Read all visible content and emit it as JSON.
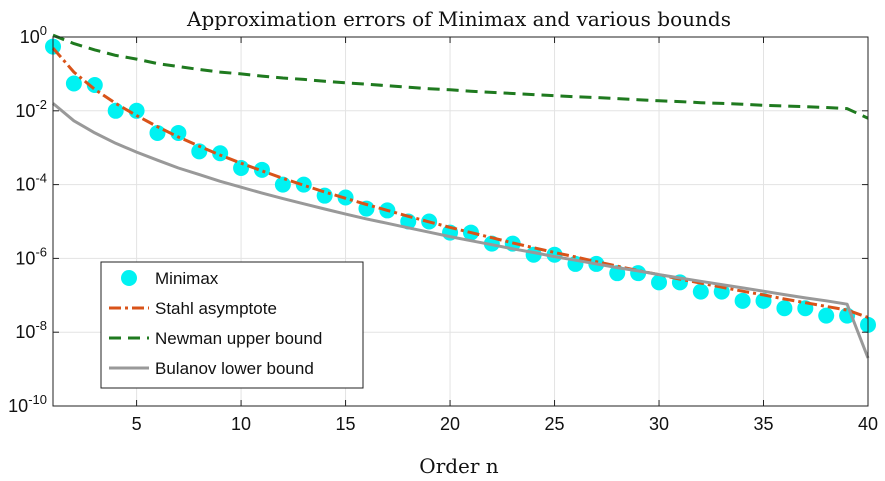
{
  "chart_data": {
    "type": "line",
    "title": "Approximation errors of Minimax and various bounds",
    "xlabel": "Order n",
    "ylabel": "",
    "xlim": [
      1,
      40
    ],
    "ylim_log10": [
      -10,
      0
    ],
    "yscale": "log",
    "grid": true,
    "legend_position": "bottom-left",
    "xticks": [
      5,
      10,
      15,
      20,
      25,
      30,
      35,
      40
    ],
    "xtick_labels": [
      "5",
      "10",
      "15",
      "20",
      "25",
      "30",
      "35",
      "40"
    ],
    "ytick_exponents": [
      -10,
      -8,
      -6,
      -4,
      -2,
      0
    ],
    "ytick_base": "10",
    "series": [
      {
        "name": "Minimax",
        "style": "markers",
        "color": "#00f2f2",
        "x": [
          1,
          2,
          3,
          4,
          5,
          6,
          7,
          8,
          9,
          10,
          11,
          12,
          13,
          14,
          15,
          16,
          17,
          18,
          19,
          20,
          21,
          22,
          23,
          24,
          25,
          26,
          27,
          28,
          29,
          30,
          31,
          32,
          33,
          34,
          35,
          36,
          37,
          38,
          39,
          40
        ],
        "log10_y": [
          -0.26,
          -1.26,
          -1.3,
          -2.0,
          -2.0,
          -2.6,
          -2.6,
          -3.1,
          -3.15,
          -3.55,
          -3.6,
          -4.0,
          -4.0,
          -4.3,
          -4.35,
          -4.65,
          -4.7,
          -5.0,
          -5.0,
          -5.3,
          -5.3,
          -5.6,
          -5.6,
          -5.9,
          -5.9,
          -6.15,
          -6.15,
          -6.4,
          -6.4,
          -6.65,
          -6.65,
          -6.9,
          -6.9,
          -7.15,
          -7.15,
          -7.35,
          -7.35,
          -7.55,
          -7.55,
          -7.8
        ]
      },
      {
        "name": "Stahl asymptote",
        "style": "dash-dot",
        "color": "#d95319",
        "x": [
          1,
          2,
          3,
          4,
          5,
          6,
          7,
          8,
          9,
          10,
          11,
          12,
          13,
          14,
          15,
          16,
          17,
          18,
          19,
          20,
          21,
          22,
          23,
          24,
          25,
          26,
          27,
          28,
          29,
          30,
          31,
          32,
          33,
          34,
          35,
          36,
          37,
          38,
          39,
          40
        ],
        "log10_y": [
          -0.3,
          -0.95,
          -1.42,
          -1.8,
          -2.13,
          -2.43,
          -2.71,
          -2.96,
          -3.2,
          -3.42,
          -3.63,
          -3.83,
          -4.02,
          -4.2,
          -4.37,
          -4.54,
          -4.7,
          -4.86,
          -5.01,
          -5.16,
          -5.3,
          -5.44,
          -5.58,
          -5.71,
          -5.84,
          -5.96,
          -6.09,
          -6.21,
          -6.33,
          -6.44,
          -6.56,
          -6.67,
          -6.78,
          -6.89,
          -6.99,
          -7.1,
          -7.2,
          -7.3,
          -7.4,
          -7.6
        ]
      },
      {
        "name": "Newman upper bound",
        "style": "dashed",
        "color": "#1f7a1f",
        "x": [
          1,
          2,
          3,
          4,
          5,
          6,
          7,
          8,
          9,
          10,
          11,
          12,
          13,
          14,
          15,
          16,
          17,
          18,
          19,
          20,
          21,
          22,
          23,
          24,
          25,
          26,
          27,
          28,
          29,
          30,
          31,
          32,
          33,
          34,
          35,
          36,
          37,
          38,
          39,
          40
        ],
        "log10_y": [
          0.05,
          -0.18,
          -0.35,
          -0.5,
          -0.6,
          -0.72,
          -0.8,
          -0.88,
          -0.95,
          -1.0,
          -1.06,
          -1.11,
          -1.15,
          -1.2,
          -1.24,
          -1.28,
          -1.32,
          -1.36,
          -1.4,
          -1.43,
          -1.47,
          -1.5,
          -1.53,
          -1.56,
          -1.59,
          -1.62,
          -1.64,
          -1.67,
          -1.7,
          -1.73,
          -1.75,
          -1.78,
          -1.8,
          -1.82,
          -1.85,
          -1.87,
          -1.89,
          -1.91,
          -1.94,
          -2.2
        ]
      },
      {
        "name": "Bulanov lower bound",
        "style": "solid",
        "color": "#999999",
        "x": [
          1,
          2,
          3,
          4,
          5,
          6,
          7,
          8,
          9,
          10,
          11,
          12,
          13,
          14,
          15,
          16,
          17,
          18,
          19,
          20,
          21,
          22,
          23,
          24,
          25,
          26,
          27,
          28,
          29,
          30,
          31,
          32,
          33,
          34,
          35,
          36,
          37,
          38,
          39,
          40
        ],
        "log10_y": [
          -1.8,
          -2.27,
          -2.6,
          -2.88,
          -3.12,
          -3.34,
          -3.55,
          -3.73,
          -3.91,
          -4.07,
          -4.23,
          -4.38,
          -4.52,
          -4.66,
          -4.8,
          -4.93,
          -5.05,
          -5.17,
          -5.29,
          -5.41,
          -5.52,
          -5.63,
          -5.74,
          -5.84,
          -5.95,
          -6.05,
          -6.15,
          -6.25,
          -6.34,
          -6.44,
          -6.53,
          -6.62,
          -6.71,
          -6.8,
          -6.89,
          -6.98,
          -7.07,
          -7.15,
          -7.24,
          -8.7
        ]
      }
    ]
  }
}
